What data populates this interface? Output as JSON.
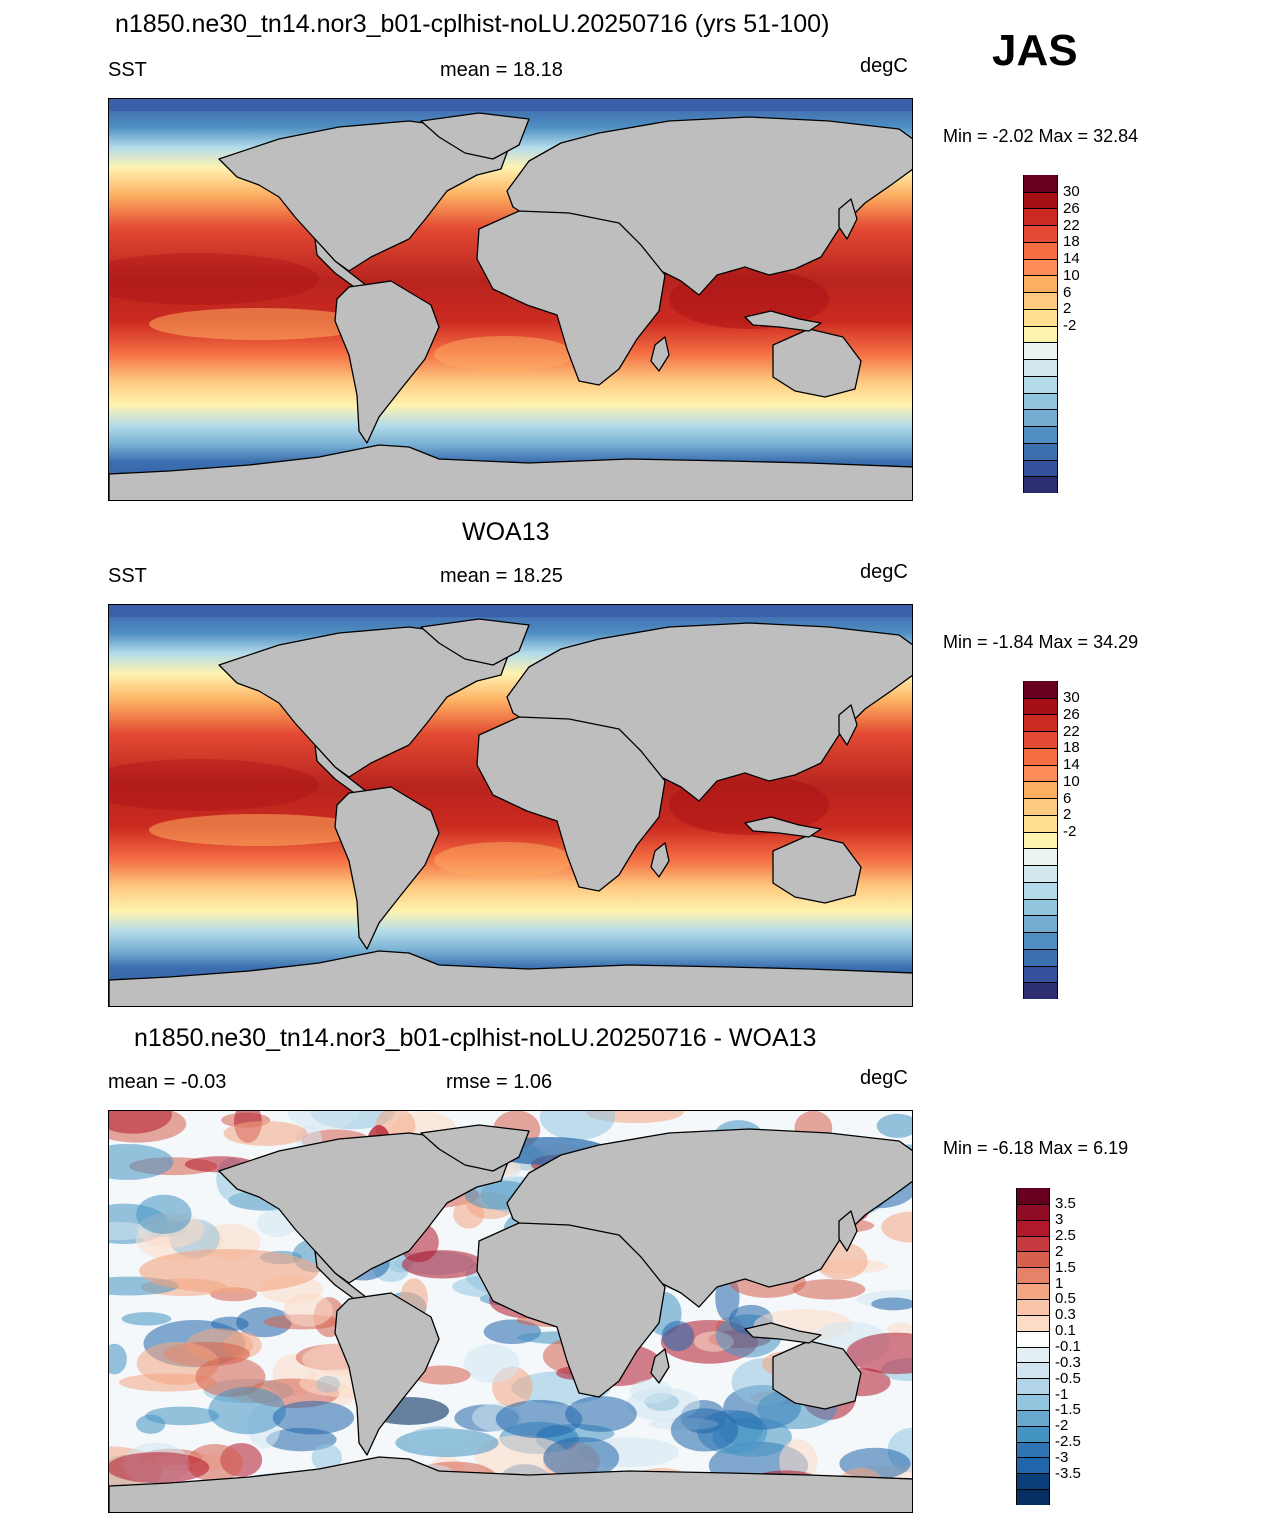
{
  "season": "JAS",
  "panels": [
    {
      "title": "n1850.ne30_tn14.nor3_b01-cplhist-noLU.20250716 (yrs 51-100)",
      "left_label": "SST",
      "center_label": "mean =  18.18",
      "right_label": "degC",
      "minmax": "Min =  -2.02 Max =  32.84",
      "map_kind": "abs",
      "colorbar": {
        "labels": [
          "30",
          "26",
          "22",
          "18",
          "14",
          "10",
          "6",
          "2",
          "-2"
        ],
        "colors": [
          "#67001f",
          "#a50f15",
          "#cb2a20",
          "#e34a33",
          "#f46d43",
          "#fc8d59",
          "#fdae61",
          "#fec980",
          "#fee090",
          "#fff3b0",
          "#eaf4f0",
          "#d1e8ef",
          "#b3dbea",
          "#92c5de",
          "#74add1",
          "#4f8fc2",
          "#3b6fb0",
          "#34539c",
          "#2d2e72"
        ]
      }
    },
    {
      "title": "WOA13",
      "left_label": "SST",
      "center_label": "mean =  18.25",
      "right_label": "degC",
      "minmax": "Min =  -1.84 Max =  34.29",
      "map_kind": "abs",
      "colorbar": {
        "labels": [
          "30",
          "26",
          "22",
          "18",
          "14",
          "10",
          "6",
          "2",
          "-2"
        ],
        "colors": [
          "#67001f",
          "#a50f15",
          "#cb2a20",
          "#e34a33",
          "#f46d43",
          "#fc8d59",
          "#fdae61",
          "#fec980",
          "#fee090",
          "#fff3b0",
          "#eaf4f0",
          "#d1e8ef",
          "#b3dbea",
          "#92c5de",
          "#74add1",
          "#4f8fc2",
          "#3b6fb0",
          "#34539c",
          "#2d2e72"
        ]
      }
    },
    {
      "title": "n1850.ne30_tn14.nor3_b01-cplhist-noLU.20250716 - WOA13",
      "left_label": "mean =  -0.03",
      "center_label": "rmse =   1.06",
      "right_label": "degC",
      "minmax": "Min =  -6.18 Max =   6.19",
      "map_kind": "diff",
      "colorbar": {
        "labels": [
          "3.5",
          "3",
          "2.5",
          "2",
          "1.5",
          "1",
          "0.5",
          "0.3",
          "0.1",
          "-0.1",
          "-0.3",
          "-0.5",
          "-1",
          "-1.5",
          "-2",
          "-2.5",
          "-3",
          "-3.5"
        ],
        "colors": [
          "#67001f",
          "#8e0c25",
          "#b2182b",
          "#c6393f",
          "#d6604d",
          "#e58267",
          "#f4a582",
          "#f9c4a8",
          "#fddbc7",
          "#ffffff",
          "#e4eef5",
          "#d1e5f0",
          "#b2d4e8",
          "#92c5de",
          "#6aa9cf",
          "#4393c3",
          "#2f74b3",
          "#2166ac",
          "#0a3f7a",
          "#053061"
        ]
      }
    }
  ]
}
